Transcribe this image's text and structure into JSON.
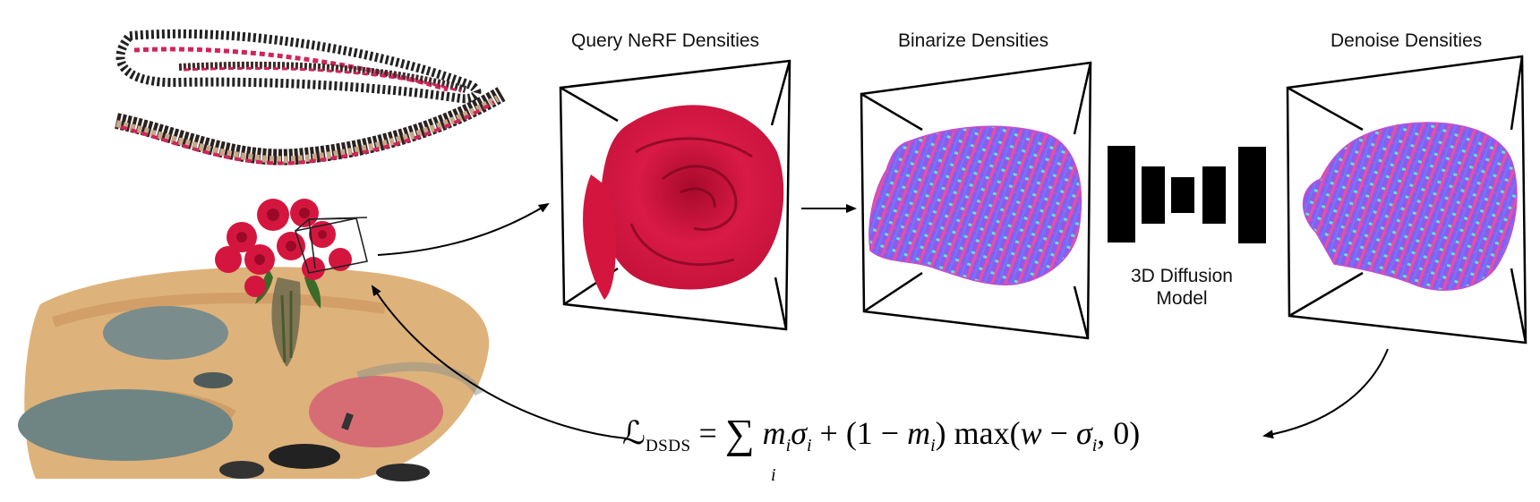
{
  "stages": {
    "query_label": "Query NeRF Densities",
    "binarize_label": "Binarize Densities",
    "denoise_label": "Denoise Densities"
  },
  "model": {
    "line1": "3D Diffusion",
    "line2": "Model"
  },
  "loss": {
    "script_L": "ℒ",
    "subscript": "DSDS",
    "equals": " = ",
    "sum_symbol": "∑",
    "sum_index": "i",
    "term1": "m",
    "term1_sub": "i",
    "sigma1": "σ",
    "sigma1_sub": "i",
    "plus": " + (1 − ",
    "m2": "m",
    "m2_sub": "i",
    "max_part": ") max(",
    "w": "w",
    "minus": " − ",
    "sigma2": "σ",
    "sigma2_sub": "i",
    "tail": ", 0)"
  },
  "colors": {
    "rose": "#d4163f",
    "voxel_purple": "#8a5cf0",
    "voxel_pink": "#ec4f9a",
    "voxel_cyan": "#5fe0d8",
    "table_tan": "#d9a86a",
    "plate_gray": "#7b8c8c",
    "frame": "#000000"
  },
  "icons": {
    "camera_trajectory": "camera-frustum-ring-icon",
    "scene": "rose-vase-scene-icon",
    "unet": "unet-bars-icon"
  }
}
